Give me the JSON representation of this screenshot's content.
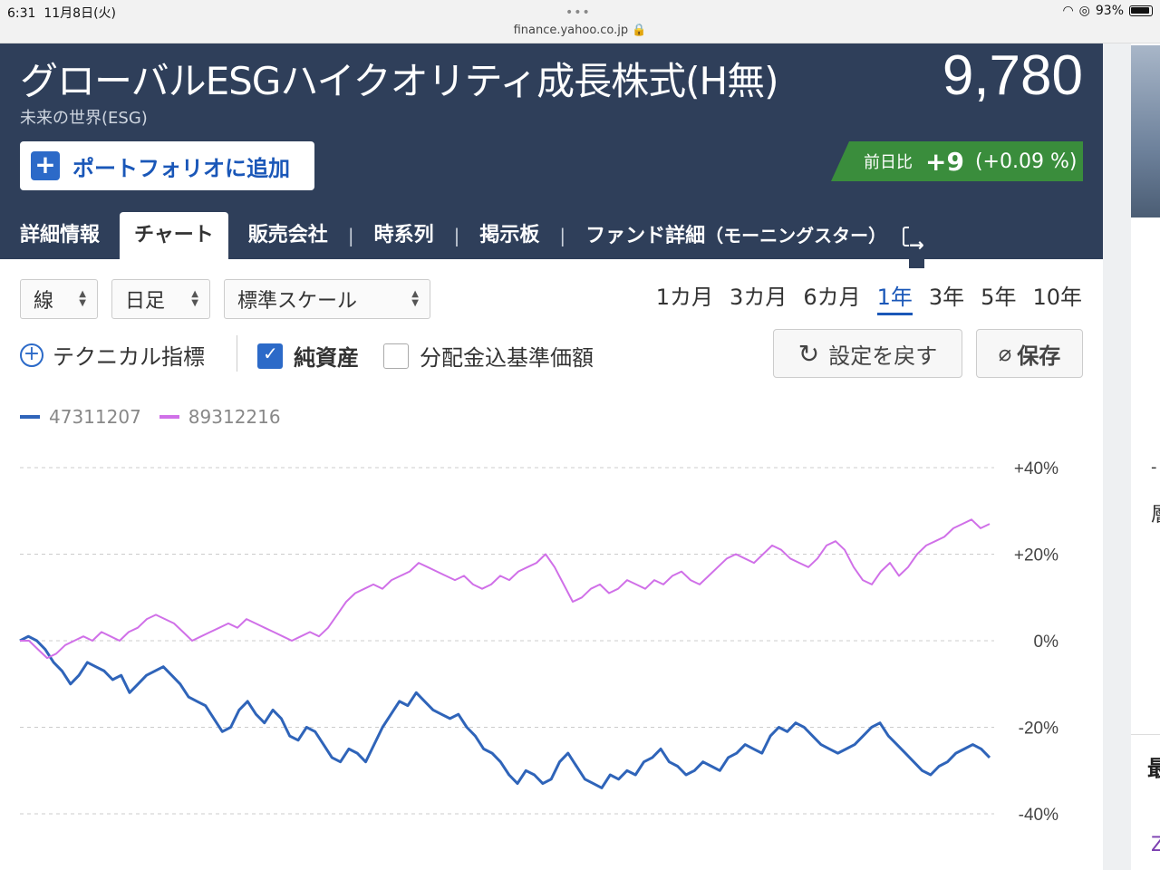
{
  "status": {
    "time": "6:31",
    "date": "11月8日(火)",
    "url": "finance.yahoo.co.jp",
    "battery": "93%"
  },
  "header": {
    "title": "グローバルESGハイクオリティ成長株式(H無)",
    "subtitle": "未来の世界(ESG)",
    "price": "9,780",
    "portfolio_button": "ポートフォリオに追加",
    "change_label": "前日比",
    "change_value": "+9",
    "change_pct": "(+0.09 %)"
  },
  "tabs": [
    {
      "label": "詳細情報"
    },
    {
      "label": "チャート",
      "active": true
    },
    {
      "label": "販売会社"
    },
    {
      "label": "時系列"
    },
    {
      "label": "掲示板"
    },
    {
      "label": "ファンド詳細",
      "sub": "（モーニングスター）"
    }
  ],
  "controls": {
    "line_type": "線",
    "interval": "日足",
    "scale": "標準スケール",
    "periods": [
      "1カ月",
      "3カ月",
      "6カ月",
      "1年",
      "3年",
      "5年",
      "10年"
    ],
    "active_period": "1年",
    "technical": "テクニカル指標",
    "chk_nav": "純資産",
    "chk_div": "分配金込基準価額",
    "reset": "設定を戻す",
    "save": "保存"
  },
  "right_strip": {
    "t1": "-",
    "t2": "層",
    "t3": "最",
    "t4": "Z"
  },
  "chart_data": {
    "type": "line",
    "ylim": [
      -40,
      40
    ],
    "yticks": [
      "+40%",
      "+20%",
      "0%",
      "-20%",
      "-40%"
    ],
    "legend_position": "top-left",
    "grid": true,
    "series": [
      {
        "name": "47311207",
        "color": "#2f64b9",
        "values": [
          0,
          1,
          0,
          -2,
          -5,
          -7,
          -10,
          -8,
          -5,
          -6,
          -7,
          -9,
          -8,
          -12,
          -10,
          -8,
          -7,
          -6,
          -8,
          -10,
          -13,
          -14,
          -15,
          -18,
          -21,
          -20,
          -16,
          -14,
          -17,
          -19,
          -16,
          -18,
          -22,
          -23,
          -20,
          -21,
          -24,
          -27,
          -28,
          -25,
          -26,
          -28,
          -24,
          -20,
          -17,
          -14,
          -15,
          -12,
          -14,
          -16,
          -17,
          -18,
          -17,
          -20,
          -22,
          -25,
          -26,
          -28,
          -31,
          -33,
          -30,
          -31,
          -33,
          -32,
          -28,
          -26,
          -29,
          -32,
          -33,
          -34,
          -31,
          -32,
          -30,
          -31,
          -28,
          -27,
          -25,
          -28,
          -29,
          -31,
          -30,
          -28,
          -29,
          -30,
          -27,
          -26,
          -24,
          -25,
          -26,
          -22,
          -20,
          -21,
          -19,
          -20,
          -22,
          -24,
          -25,
          -26,
          -25,
          -24,
          -22,
          -20,
          -19,
          -22,
          -24,
          -26,
          -28,
          -30,
          -31,
          -29,
          -28,
          -26,
          -25,
          -24,
          -25,
          -27
        ]
      },
      {
        "name": "89312216",
        "color": "#d070e8",
        "values": [
          0,
          0,
          -2,
          -4,
          -3,
          -1,
          0,
          1,
          0,
          2,
          1,
          0,
          2,
          3,
          5,
          6,
          5,
          4,
          2,
          0,
          1,
          2,
          3,
          4,
          3,
          5,
          4,
          3,
          2,
          1,
          0,
          1,
          2,
          1,
          3,
          6,
          9,
          11,
          12,
          13,
          12,
          14,
          15,
          16,
          18,
          17,
          16,
          15,
          14,
          15,
          13,
          12,
          13,
          15,
          14,
          16,
          17,
          18,
          20,
          17,
          13,
          9,
          10,
          12,
          13,
          11,
          12,
          14,
          13,
          12,
          14,
          13,
          15,
          16,
          14,
          13,
          15,
          17,
          19,
          20,
          19,
          18,
          20,
          22,
          21,
          19,
          18,
          17,
          19,
          22,
          23,
          21,
          17,
          14,
          13,
          16,
          18,
          15,
          17,
          20,
          22,
          23,
          24,
          26,
          27,
          28,
          26,
          27
        ]
      }
    ]
  }
}
